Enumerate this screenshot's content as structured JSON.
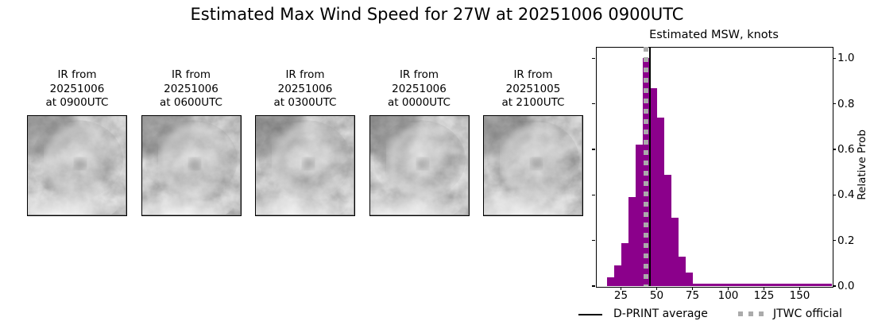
{
  "figure": {
    "title": "Estimated Max Wind Speed for 27W at 20251006 0900UTC",
    "background": "#ffffff"
  },
  "ir_panels": [
    {
      "lines": [
        "IR from",
        "20251006",
        "at 0900UTC"
      ]
    },
    {
      "lines": [
        "IR from",
        "20251006",
        "at 0600UTC"
      ]
    },
    {
      "lines": [
        "IR from",
        "20251006",
        "at 0300UTC"
      ]
    },
    {
      "lines": [
        "IR from",
        "20251006",
        "at 0000UTC"
      ]
    },
    {
      "lines": [
        "IR from",
        "20251005",
        "at 2100UTC"
      ]
    }
  ],
  "chart_data": {
    "type": "bar",
    "title": "Estimated MSW, knots",
    "xlabel": "",
    "ylabel": "Relative Prob",
    "xlim": [
      7.5,
      172.5
    ],
    "ylim": [
      0,
      1.05
    ],
    "x_ticks": [
      25,
      50,
      75,
      100,
      125,
      150
    ],
    "y_ticks": [
      0.0,
      0.2,
      0.4,
      0.6,
      0.8,
      1.0
    ],
    "grid": false,
    "legend_position": "bottom",
    "bin_edges_knots": [
      15,
      20,
      25,
      30,
      35,
      40,
      45,
      50,
      55,
      60,
      65,
      70,
      75,
      172.5
    ],
    "relative_prob": [
      0.04,
      0.09,
      0.19,
      0.39,
      0.62,
      1.0,
      0.87,
      0.74,
      0.49,
      0.3,
      0.13,
      0.06,
      0.012
    ],
    "dprint_average_knots": 45.3,
    "jtwc_official_knots": 42.5,
    "bar_color": "#8B008B",
    "average_line_color": "#000000",
    "jtwc_line_color": "#ABABAB"
  },
  "legend": {
    "dprint_label": "D-PRINT average",
    "jtwc_label": "JTWC official"
  }
}
